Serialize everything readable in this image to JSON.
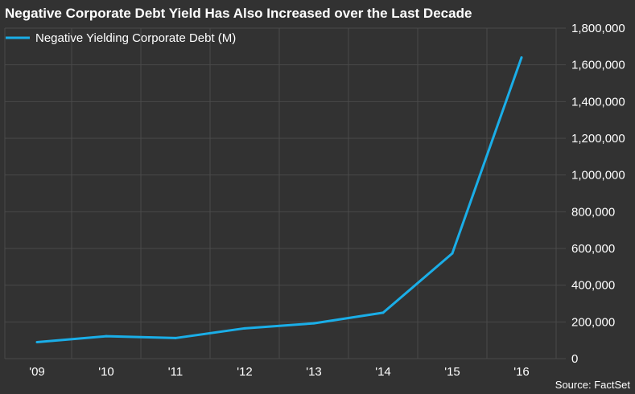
{
  "chart_data": {
    "type": "line",
    "title": "Negative Corporate Debt Yield Has Also Increased over the Last Decade",
    "x": [
      "'09",
      "'10",
      "'11",
      "'12",
      "'13",
      "'14",
      "'15",
      "'16"
    ],
    "series": [
      {
        "name": "Negative Yielding Corporate Debt (M)",
        "values": [
          90000,
          122000,
          112000,
          165000,
          192000,
          250000,
          573000,
          1640000
        ],
        "color": "#1aaee8"
      }
    ],
    "ylim": [
      0,
      1800000
    ],
    "yticks": [
      "0",
      "200,000",
      "400,000",
      "600,000",
      "800,000",
      "1,000,000",
      "1,200,000",
      "1,400,000",
      "1,600,000",
      "1,800,000"
    ],
    "y_axis_side": "right",
    "grid": true,
    "legend_position": "top-left",
    "source": "Source: FactSet",
    "colors": {
      "background": "#323232",
      "grid": "#4a4a4a",
      "text": "#ffffff"
    }
  }
}
